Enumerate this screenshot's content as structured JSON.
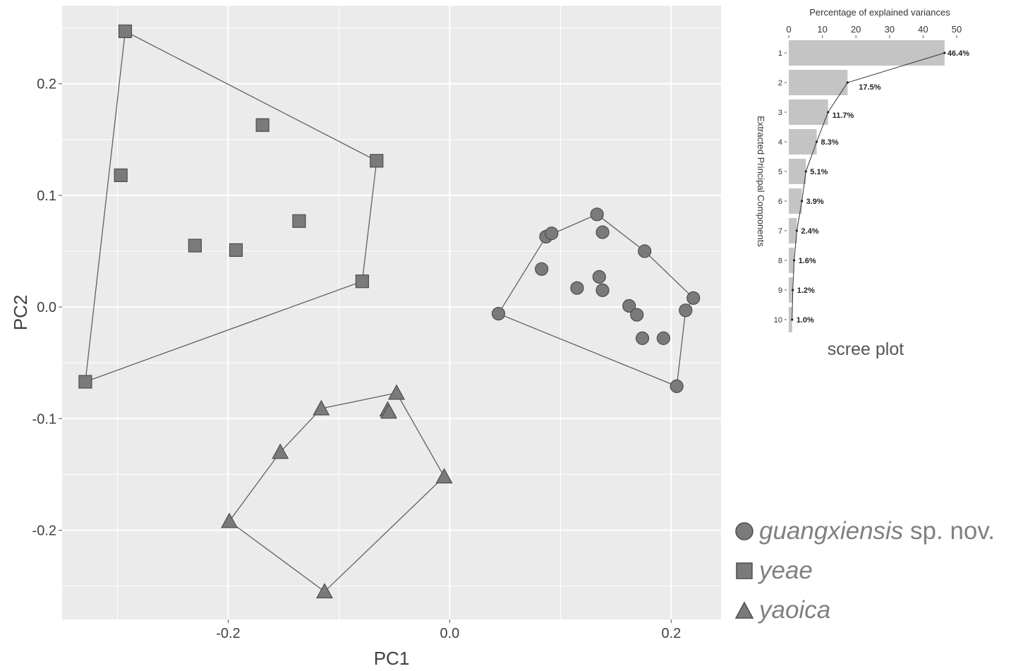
{
  "colors": {
    "panel": "#ebebeb",
    "grid": "#ffffff",
    "marker": "#7a7a7a",
    "marker_stroke": "#4d4d4d",
    "hull": "#606060",
    "bar": "#c4c4c4",
    "text": "#404040",
    "legend_text": "#808080"
  },
  "chart_data": [
    {
      "type": "scatter",
      "xlabel": "PC1",
      "ylabel": "PC2",
      "xlim": [
        -0.35,
        0.245
      ],
      "ylim": [
        -0.28,
        0.27
      ],
      "xticks": [
        "-0.2",
        "0.0",
        "0.2"
      ],
      "xtick_values": [
        -0.2,
        0.0,
        0.2
      ],
      "yticks": [
        "0.2",
        "0.1",
        "0.0",
        "-0.1",
        "-0.2"
      ],
      "ytick_values": [
        0.2,
        0.1,
        0.0,
        -0.1,
        -0.2
      ],
      "grid": true,
      "legend_position": "right-bottom",
      "series": [
        {
          "name": "guangxiensis",
          "name_suffix": "sp. nov.",
          "marker": "circle",
          "points": [
            [
              0.044,
              -0.006
            ],
            [
              0.083,
              0.034
            ],
            [
              0.087,
              0.063
            ],
            [
              0.092,
              0.066
            ],
            [
              0.115,
              0.017
            ],
            [
              0.133,
              0.083
            ],
            [
              0.135,
              0.027
            ],
            [
              0.138,
              0.015
            ],
            [
              0.138,
              0.067
            ],
            [
              0.162,
              0.001
            ],
            [
              0.169,
              -0.007
            ],
            [
              0.174,
              -0.028
            ],
            [
              0.176,
              0.05
            ],
            [
              0.193,
              -0.028
            ],
            [
              0.205,
              -0.071
            ],
            [
              0.213,
              -0.003
            ],
            [
              0.22,
              0.008
            ]
          ],
          "hull": [
            [
              0.044,
              -0.006
            ],
            [
              0.087,
              0.063
            ],
            [
              0.133,
              0.083
            ],
            [
              0.176,
              0.05
            ],
            [
              0.22,
              0.008
            ],
            [
              0.213,
              -0.003
            ],
            [
              0.205,
              -0.071
            ]
          ]
        },
        {
          "name": "yeae",
          "marker": "square",
          "points": [
            [
              -0.293,
              0.247
            ],
            [
              -0.297,
              0.118
            ],
            [
              -0.329,
              -0.067
            ],
            [
              -0.169,
              0.163
            ],
            [
              -0.23,
              0.055
            ],
            [
              -0.193,
              0.051
            ],
            [
              -0.136,
              0.077
            ],
            [
              -0.066,
              0.131
            ],
            [
              -0.079,
              0.023
            ]
          ],
          "hull": [
            [
              -0.293,
              0.247
            ],
            [
              -0.066,
              0.131
            ],
            [
              -0.079,
              0.023
            ],
            [
              -0.329,
              -0.067
            ]
          ]
        },
        {
          "name": "yaoica",
          "marker": "triangle",
          "points": [
            [
              -0.116,
              -0.091
            ],
            [
              -0.048,
              -0.077
            ],
            [
              -0.056,
              -0.092
            ],
            [
              -0.055,
              -0.094
            ],
            [
              -0.153,
              -0.13
            ],
            [
              -0.005,
              -0.152
            ],
            [
              -0.199,
              -0.192
            ],
            [
              -0.113,
              -0.255
            ]
          ],
          "hull": [
            [
              -0.116,
              -0.091
            ],
            [
              -0.048,
              -0.077
            ],
            [
              -0.005,
              -0.152
            ],
            [
              -0.113,
              -0.255
            ],
            [
              -0.199,
              -0.192
            ],
            [
              -0.153,
              -0.13
            ]
          ]
        }
      ]
    },
    {
      "type": "bar",
      "orientation": "horizontal",
      "title": "Percentage of explained variances",
      "ylabel": "Extracted Principal Components",
      "caption": "scree plot",
      "xlim": [
        0,
        50
      ],
      "xticks": [
        "0",
        "10",
        "20",
        "30",
        "40",
        "50"
      ],
      "xtick_values": [
        0,
        10,
        20,
        30,
        40,
        50
      ],
      "categories": [
        "1",
        "2",
        "3",
        "4",
        "5",
        "6",
        "7",
        "8",
        "9",
        "10"
      ],
      "values": [
        46.4,
        17.5,
        11.7,
        8.3,
        5.1,
        3.9,
        2.4,
        1.6,
        1.2,
        1.0
      ],
      "labels": [
        "46.4%",
        "17.5%",
        "11.7%",
        "8.3%",
        "5.1%",
        "3.9%",
        "2.4%",
        "1.6%",
        "1.2%",
        "1.0%"
      ],
      "line_overlay": true
    }
  ]
}
